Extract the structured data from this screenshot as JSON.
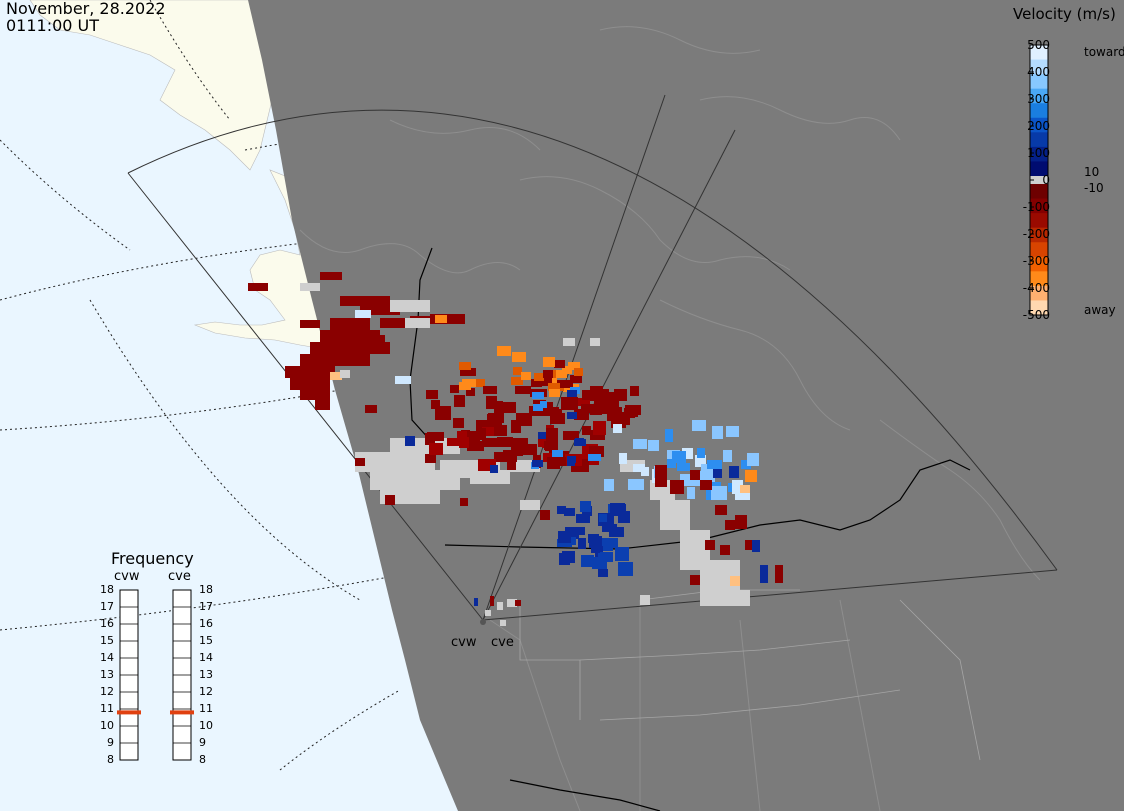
{
  "header": {
    "date": "November, 28.2022",
    "time": "0111:00 UT"
  },
  "colorbar": {
    "title": "Velocity (m/s)",
    "ticks": [
      "500",
      "400",
      "300",
      "200",
      "100",
      "0",
      "-100",
      "-200",
      "-300",
      "-400",
      "-500"
    ],
    "side_labels": {
      "toward": "toward",
      "away": "away",
      "pos_threshold": "10",
      "neg_threshold": "-10"
    },
    "colors_toward": [
      "#e0f0ff",
      "#b4dcff",
      "#87c8ff",
      "#4aa8f5",
      "#1a7ee0",
      "#0b55c8",
      "#073aa8",
      "#042088",
      "#000c70"
    ],
    "colors_away": [
      "#6e0000",
      "#840000",
      "#9a0a00",
      "#b82800",
      "#d84400",
      "#f06000",
      "#ff8a1a",
      "#ffb070",
      "#ffd8b0"
    ],
    "ground_scatter_color": "#cfcfcf"
  },
  "frequency": {
    "title": "Frequency",
    "radars": [
      {
        "name": "cvw",
        "marker_mhz": 10.8
      },
      {
        "name": "cve",
        "marker_mhz": 10.8
      }
    ],
    "scale": [
      "18",
      "17",
      "16",
      "15",
      "14",
      "13",
      "12",
      "11",
      "10",
      "9",
      "8"
    ],
    "marker_color": "#e04010"
  },
  "map": {
    "radar_sites": [
      "cvw",
      "cve"
    ],
    "night_color": "#7b7b7b",
    "ocean_color": "#eaf6ff",
    "land_day_color": "#fbfbec"
  }
}
